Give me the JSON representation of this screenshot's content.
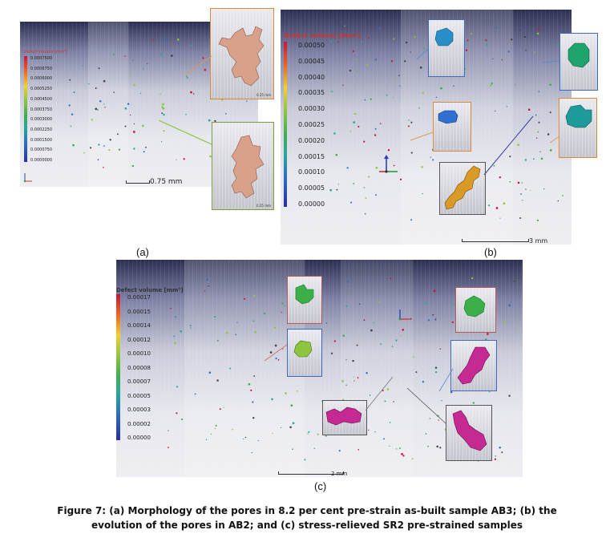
{
  "panels": {
    "a": {
      "label": "(a)",
      "legend_title": "Defect volume [mm³]",
      "legend_ticks": [
        "0.0007500",
        "0.0006750",
        "0.0006000",
        "0.0005250",
        "0.0004500",
        "0.0003750",
        "0.0003000",
        "0.0002250",
        "0.0001500",
        "0.0000750",
        "0.0000000"
      ],
      "scale_bar": "0.75 mm",
      "inset_scale": "0.25 mm",
      "inset_colors": [
        "#d9a08a",
        "#d9a08a"
      ]
    },
    "b": {
      "label": "(b)",
      "legend_title": "Defect volume [mm³]",
      "legend_ticks": [
        "0.00050",
        "0.00045",
        "0.00040",
        "0.00035",
        "0.00030",
        "0.00025",
        "0.00020",
        "0.00015",
        "0.00010",
        "0.00005",
        "0.00000"
      ],
      "scale_bar": "3 mm",
      "inset_colors": [
        "#2a8fc8",
        "#1fa46e",
        "#2f6fd0",
        "#1d9a9a",
        "#d99a26"
      ]
    },
    "c": {
      "label": "(c)",
      "legend_title": "Defect volume [mm³]",
      "legend_ticks": [
        "0.00017",
        "0.00015",
        "0.00014",
        "0.00012",
        "0.00010",
        "0.00008",
        "0.00007",
        "0.00005",
        "0.00003",
        "0.00002",
        "0.00000"
      ],
      "scale_bar": "2 mm",
      "inset_colors": [
        "#3bb04a",
        "#8cc63e",
        "#3bb04a",
        "#c42a92",
        "#c42a92",
        "#c42a92"
      ]
    }
  },
  "caption": {
    "line1": "Figure 7: (a) Morphology of the pores in 8.2 per cent pre-strain as-built sample AB3; (b) the",
    "line2": "evolution of the pores in AB2; and (c) stress-relieved SR2 pre-strained samples"
  }
}
